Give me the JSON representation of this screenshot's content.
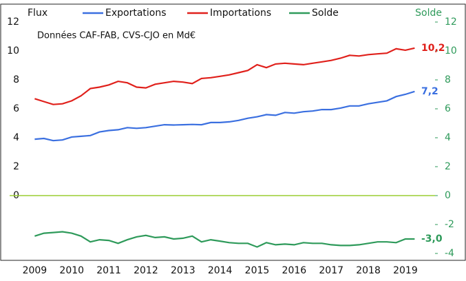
{
  "chart_data": {
    "type": "line",
    "y_label": "Flux",
    "y2_label": "Solde",
    "annotation": "Données CAF-FAB, CVS-CJO en Md€",
    "x": [
      2009,
      2009.25,
      2009.5,
      2009.75,
      2010,
      2010.25,
      2010.5,
      2010.75,
      2011,
      2011.25,
      2011.5,
      2011.75,
      2012,
      2012.25,
      2012.5,
      2012.75,
      2013,
      2013.25,
      2013.5,
      2013.75,
      2014,
      2014.25,
      2014.5,
      2014.75,
      2015,
      2015.25,
      2015.5,
      2015.75,
      2016,
      2016.25,
      2016.5,
      2016.75,
      2017,
      2017.25,
      2017.5,
      2017.75,
      2018,
      2018.25,
      2018.5,
      2018.75,
      2019,
      2019.25
    ],
    "series": [
      {
        "name": "Exportations",
        "color": "#3a6fe0",
        "values": [
          3.9,
          3.95,
          3.8,
          3.85,
          4.05,
          4.1,
          4.15,
          4.4,
          4.5,
          4.55,
          4.7,
          4.65,
          4.7,
          4.8,
          4.9,
          4.88,
          4.9,
          4.92,
          4.9,
          5.05,
          5.05,
          5.1,
          5.2,
          5.35,
          5.45,
          5.6,
          5.55,
          5.75,
          5.7,
          5.8,
          5.85,
          5.95,
          5.95,
          6.05,
          6.2,
          6.2,
          6.35,
          6.45,
          6.55,
          6.85,
          7.0,
          7.2
        ],
        "value_labels": [
          null,
          null,
          null,
          null,
          null,
          null,
          null,
          null,
          null,
          null,
          null,
          null,
          null,
          null,
          null,
          null,
          null,
          null,
          null,
          null,
          null,
          null,
          null,
          null,
          null,
          null,
          null,
          null,
          null,
          null,
          null,
          null,
          null,
          null,
          null,
          null,
          null,
          null,
          null,
          null,
          null,
          "7,2"
        ]
      },
      {
        "name": "Importations",
        "color": "#e0201b",
        "values": [
          6.7,
          6.5,
          6.3,
          6.35,
          6.55,
          6.9,
          7.4,
          7.5,
          7.65,
          7.9,
          7.8,
          7.5,
          7.45,
          7.7,
          7.8,
          7.9,
          7.85,
          7.75,
          8.1,
          8.15,
          8.25,
          8.35,
          8.5,
          8.65,
          9.05,
          8.85,
          9.1,
          9.15,
          9.1,
          9.05,
          9.15,
          9.25,
          9.35,
          9.5,
          9.7,
          9.65,
          9.75,
          9.8,
          9.85,
          10.15,
          10.05,
          10.2
        ],
        "value_labels": [
          null,
          null,
          null,
          null,
          null,
          null,
          null,
          null,
          null,
          null,
          null,
          null,
          null,
          null,
          null,
          null,
          null,
          null,
          null,
          null,
          null,
          null,
          null,
          null,
          null,
          null,
          null,
          null,
          null,
          null,
          null,
          null,
          null,
          null,
          null,
          null,
          null,
          null,
          null,
          null,
          null,
          "10,2"
        ]
      },
      {
        "name": "Solde",
        "color": "#2e9a5a",
        "axis": "y2",
        "values": [
          -2.8,
          -2.6,
          -2.55,
          -2.5,
          -2.6,
          -2.8,
          -3.2,
          -3.05,
          -3.1,
          -3.3,
          -3.05,
          -2.85,
          -2.75,
          -2.9,
          -2.85,
          -3.0,
          -2.95,
          -2.8,
          -3.2,
          -3.05,
          -3.15,
          -3.25,
          -3.3,
          -3.3,
          -3.55,
          -3.25,
          -3.4,
          -3.35,
          -3.4,
          -3.25,
          -3.3,
          -3.3,
          -3.4,
          -3.45,
          -3.45,
          -3.4,
          -3.3,
          -3.2,
          -3.2,
          -3.25,
          -3.0,
          -3.0
        ],
        "value_labels": [
          null,
          null,
          null,
          null,
          null,
          null,
          null,
          null,
          null,
          null,
          null,
          null,
          null,
          null,
          null,
          null,
          null,
          null,
          null,
          null,
          null,
          null,
          null,
          null,
          null,
          null,
          null,
          null,
          null,
          null,
          null,
          null,
          null,
          null,
          null,
          null,
          null,
          null,
          null,
          null,
          null,
          "-3,0"
        ]
      }
    ],
    "xlim": [
      2008.9,
      2019.8
    ],
    "xticks": [
      2009,
      2010,
      2011,
      2012,
      2013,
      2014,
      2015,
      2016,
      2017,
      2018,
      2019
    ],
    "ylim": [
      -4,
      12
    ],
    "yticks": [
      0,
      2,
      4,
      6,
      8,
      10,
      12
    ],
    "y2lim": [
      -4,
      12
    ],
    "y2ticks": [
      -4,
      -2,
      0,
      2,
      4,
      6,
      8,
      10,
      12
    ],
    "y2_color": "#2e9a5a",
    "zero_line_color": "#9acd32"
  }
}
